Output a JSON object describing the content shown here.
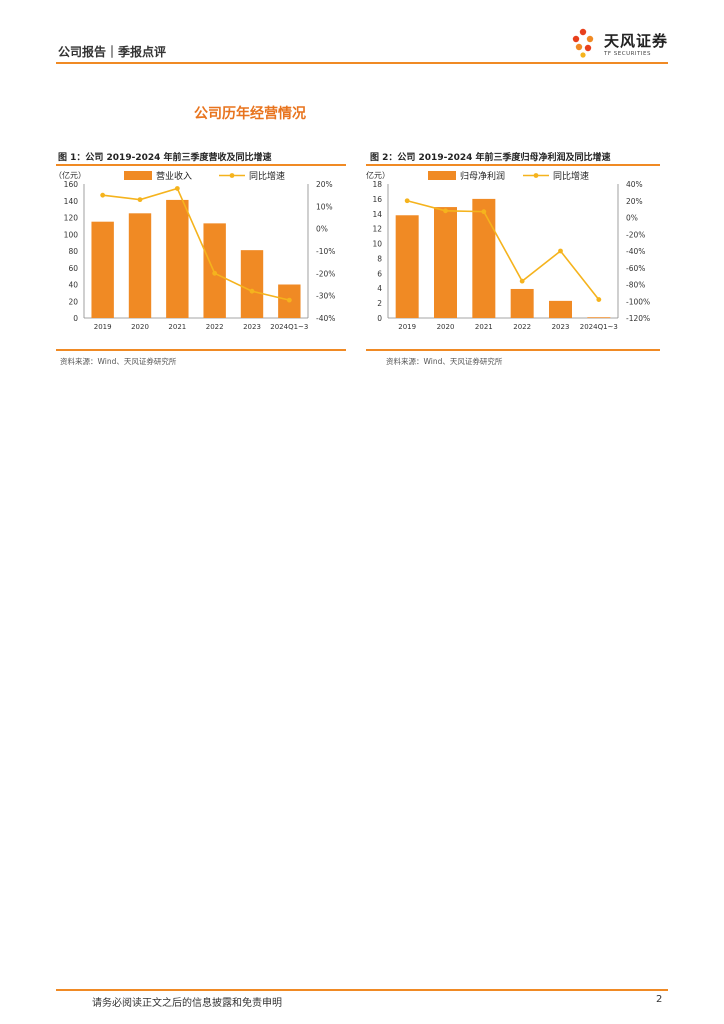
{
  "header": {
    "left": "公司报告｜季报点评",
    "brand_name": "天风证券",
    "brand_sub": "TF SECURITIES"
  },
  "section_title": "公司历年经营情况",
  "figures": [
    {
      "title": "图 1：公司 2019-2024 年前三季度营收及同比增速",
      "source": "资料来源：Wind、天风证券研究所"
    },
    {
      "title": "图 2：公司 2019-2024 年前三季度归母净利润及同比增速",
      "source": "资料来源：Wind、天风证券研究所"
    }
  ],
  "chart_data": [
    {
      "type": "bar",
      "categories": [
        "2019",
        "2020",
        "2021",
        "2022",
        "2023",
        "2024Q1~3"
      ],
      "series": [
        {
          "name": "营业收入",
          "type": "bar",
          "axis": "left",
          "values": [
            115,
            125,
            141,
            113,
            81,
            40
          ],
          "color": "#f08a24"
        },
        {
          "name": "同比增速",
          "type": "line",
          "axis": "right",
          "values": [
            15,
            13,
            18,
            -20,
            -28,
            -32
          ],
          "color": "#f5b31d"
        }
      ],
      "unit_label": "（亿元）",
      "left_ylim": [
        0,
        160
      ],
      "left_ticks": [
        "0",
        "20",
        "40",
        "60",
        "80",
        "100",
        "120",
        "140",
        "160"
      ],
      "right_ylim": [
        -40,
        20
      ],
      "right_ticks": [
        "-40%",
        "-30%",
        "-20%",
        "-10%",
        "0%",
        "10%",
        "20%"
      ],
      "legend": "top"
    },
    {
      "type": "bar",
      "categories": [
        "2019",
        "2020",
        "2021",
        "2022",
        "2023",
        "2024Q1~3"
      ],
      "series": [
        {
          "name": "归母净利润",
          "type": "bar",
          "axis": "left",
          "values": [
            13.8,
            14.9,
            16.0,
            3.9,
            2.3,
            0.1
          ],
          "color": "#f08a24"
        },
        {
          "name": "同比增速",
          "type": "line",
          "axis": "right",
          "values": [
            20,
            8,
            7,
            -76,
            -40,
            -98
          ],
          "color": "#f5b31d"
        }
      ],
      "unit_label": "（亿元）",
      "left_ylim": [
        0,
        18
      ],
      "left_ticks": [
        "0",
        "2",
        "4",
        "6",
        "8",
        "10",
        "12",
        "14",
        "16",
        "18"
      ],
      "right_ylim": [
        -120,
        40
      ],
      "right_ticks": [
        "-120%",
        "-100%",
        "-80%",
        "-60%",
        "-40%",
        "-20%",
        "0%",
        "20%",
        "40%"
      ],
      "legend": "top"
    }
  ],
  "footer": {
    "text": "请务必阅读正文之后的信息披露和免责申明",
    "page": "2"
  }
}
